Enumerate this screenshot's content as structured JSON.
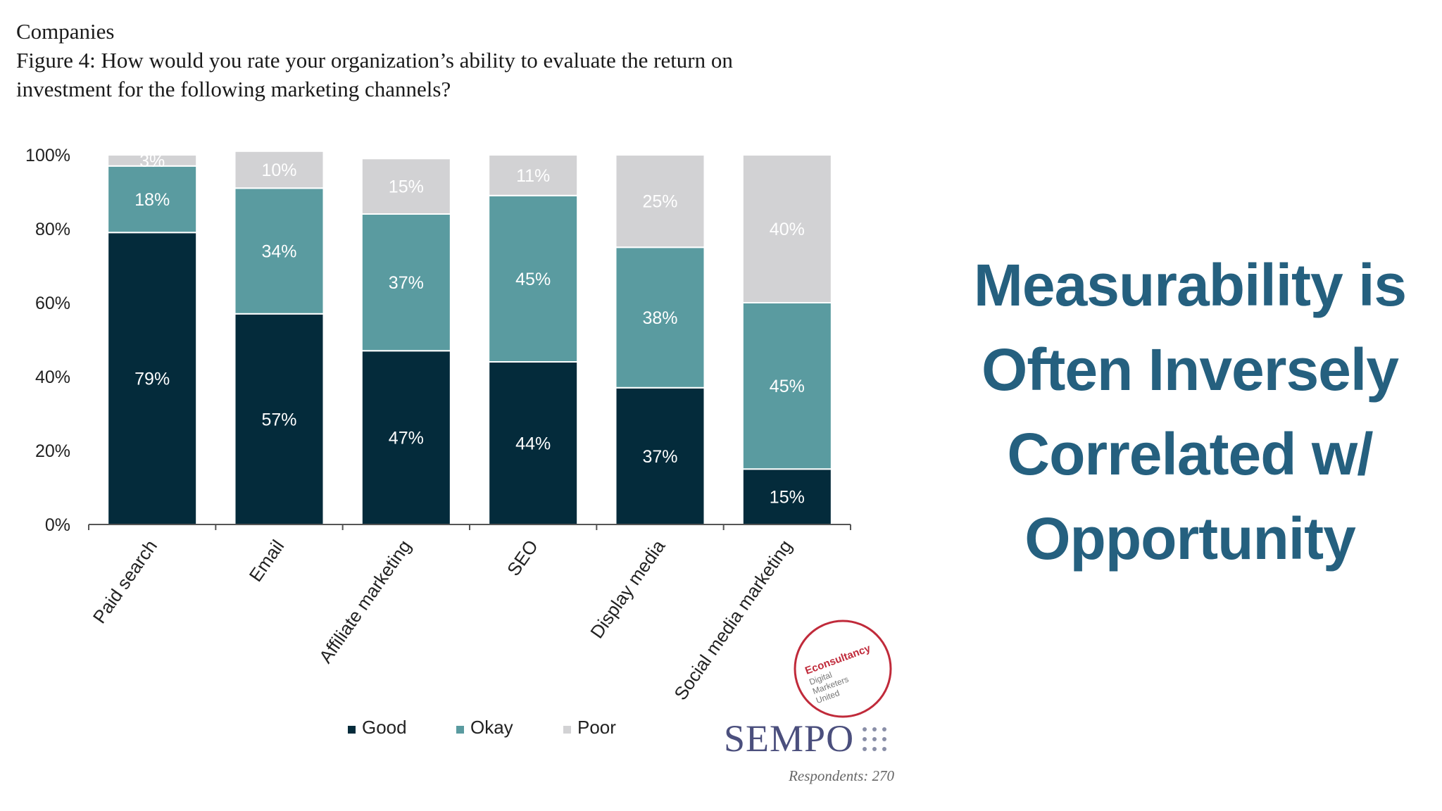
{
  "figure": {
    "section": "Companies",
    "title_line1": "Figure 4: How would you rate your organization’s ability to evaluate the return on",
    "title_line2": "investment for the following marketing channels?"
  },
  "slide": {
    "heading_lines": [
      "Measurability is",
      "Often Inversely",
      "Correlated w/",
      "Opportunity"
    ]
  },
  "logos": {
    "badge_text": [
      "Econsultancy",
      "Digital",
      "Marketers",
      "United"
    ],
    "sempo": "SEMPO",
    "respondents": "Respondents: 270"
  },
  "colors": {
    "good": "#042b3b",
    "okay": "#5a9ba0",
    "poor": "#d2d2d4",
    "heading": "#25607f",
    "badge": "#c02a3a"
  },
  "chart_data": {
    "type": "bar",
    "stacked": true,
    "categories": [
      "Paid search",
      "Email",
      "Affiliate marketing",
      "SEO",
      "Display media",
      "Social media marketing"
    ],
    "series": [
      {
        "name": "Good",
        "values": [
          79,
          57,
          47,
          44,
          37,
          15
        ]
      },
      {
        "name": "Okay",
        "values": [
          18,
          34,
          37,
          45,
          38,
          45
        ]
      },
      {
        "name": "Poor",
        "values": [
          3,
          10,
          15,
          11,
          25,
          40
        ]
      }
    ],
    "ylim": [
      0,
      100
    ],
    "yticks": [
      0,
      20,
      40,
      60,
      80,
      100
    ],
    "ytick_labels": [
      "0%",
      "20%",
      "40%",
      "60%",
      "80%",
      "100%"
    ],
    "value_suffix": "%",
    "legend_position": "bottom",
    "grid": false
  }
}
